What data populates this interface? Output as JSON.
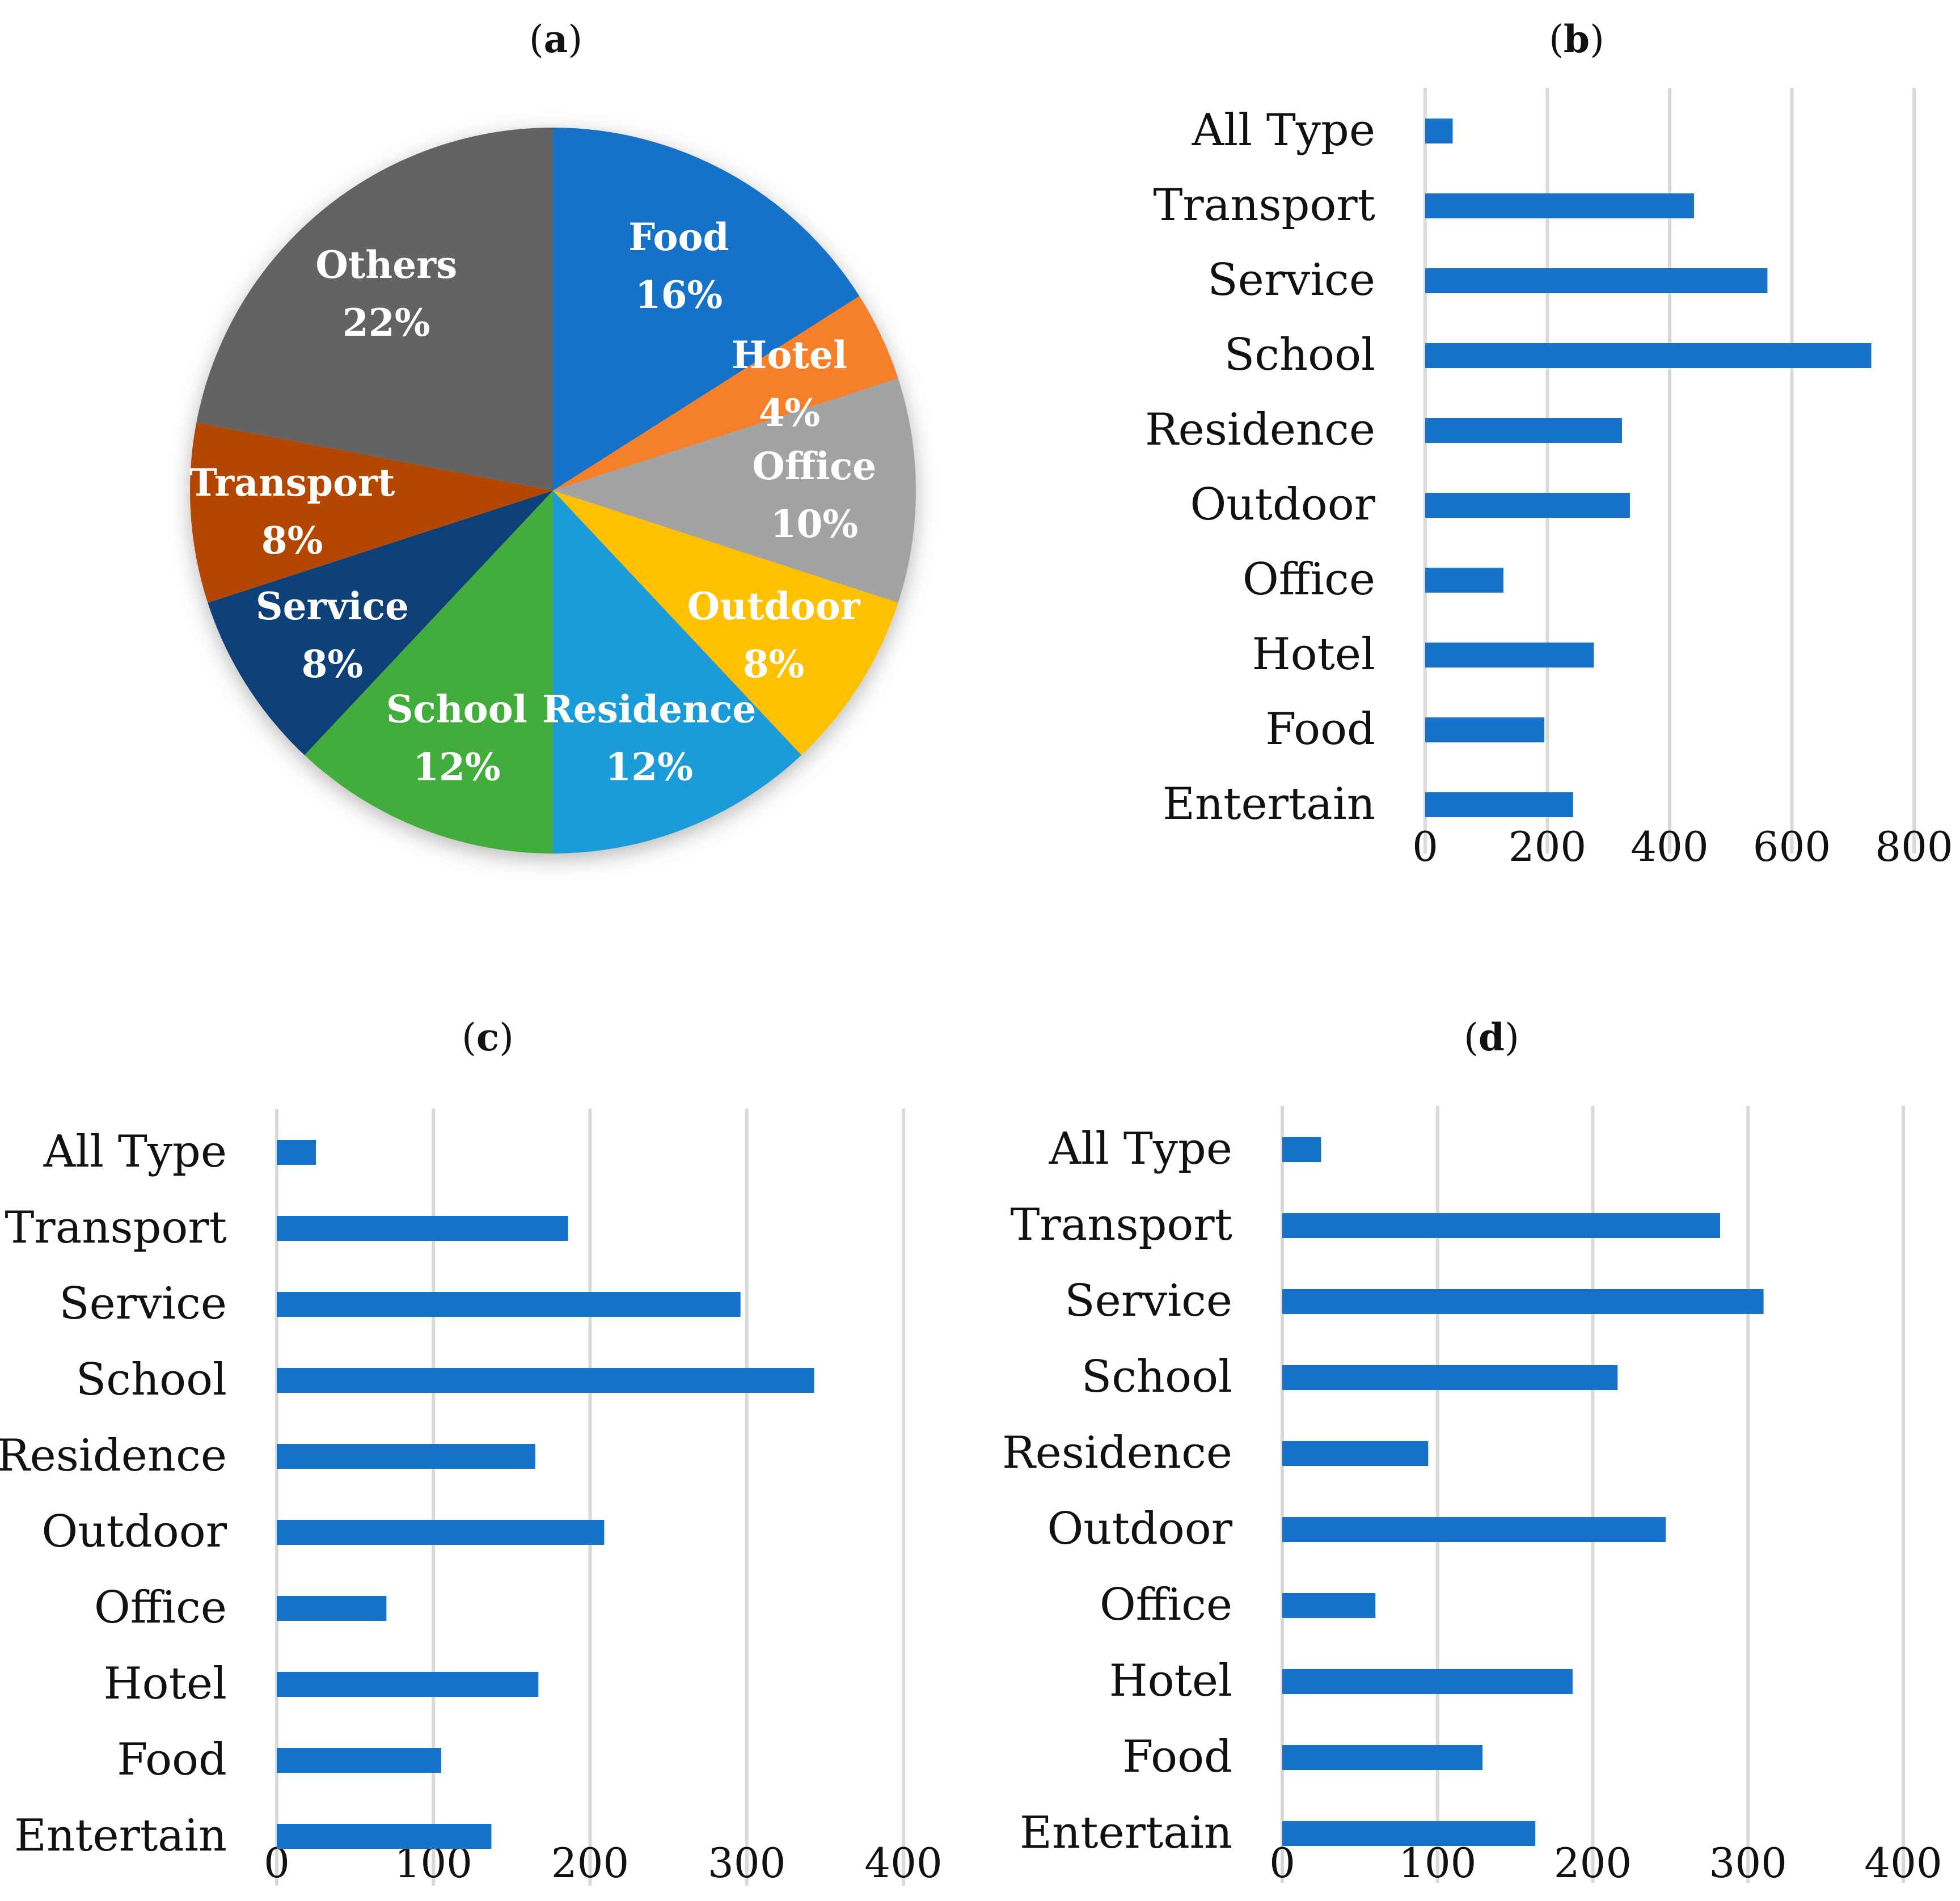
{
  "panels": {
    "a": {
      "title_letter": "a"
    },
    "b": {
      "title_letter": "b"
    },
    "c": {
      "title_letter": "c"
    },
    "d": {
      "title_letter": "d"
    }
  },
  "chart_data": [
    {
      "panel": "a",
      "type": "pie",
      "title": "(a)",
      "start_angle": "12 o'clock, clockwise",
      "slices": [
        {
          "label": "Food",
          "value": 16,
          "text": "16%",
          "color": "#1772C9"
        },
        {
          "label": "Hotel",
          "value": 4,
          "text": "4%",
          "color": "#F6802A"
        },
        {
          "label": "Office",
          "value": 10,
          "text": "10%",
          "color": "#A3A3A3"
        },
        {
          "label": "Outdoor",
          "value": 8,
          "text": "8%",
          "color": "#FFC000"
        },
        {
          "label": "Residence",
          "value": 12,
          "text": "12%",
          "color": "#1E9BD9"
        },
        {
          "label": "School",
          "value": 12,
          "text": "12%",
          "color": "#43AC3D"
        },
        {
          "label": "Service",
          "value": 8,
          "text": "8%",
          "color": "#0E4178"
        },
        {
          "label": "Transport",
          "value": 8,
          "text": "8%",
          "color": "#B44705"
        },
        {
          "label": "Others",
          "value": 22,
          "text": "22%",
          "color": "#646464"
        }
      ]
    },
    {
      "panel": "b",
      "type": "bar",
      "orientation": "horizontal",
      "title": "(b)",
      "categories": [
        "All Type",
        "Transport",
        "Service",
        "School",
        "Residence",
        "Outdoor",
        "Office",
        "Hotel",
        "Food",
        "Entertain"
      ],
      "values": [
        45,
        440,
        560,
        730,
        322,
        335,
        128,
        276,
        195,
        242
      ],
      "xlim": [
        0,
        800
      ],
      "ticks": [
        0,
        200,
        400,
        600,
        800
      ],
      "grid": true,
      "bar_color": "#1772C9"
    },
    {
      "panel": "c",
      "type": "bar",
      "orientation": "horizontal",
      "title": "(c)",
      "categories": [
        "All Type",
        "Transport",
        "Service",
        "School",
        "Residence",
        "Outdoor",
        "Office",
        "Hotel",
        "Food",
        "Entertain"
      ],
      "values": [
        25,
        186,
        296,
        343,
        165,
        209,
        70,
        167,
        105,
        137
      ],
      "xlim": [
        0,
        400
      ],
      "ticks": [
        0,
        100,
        200,
        300,
        400
      ],
      "grid": true,
      "bar_color": "#1772C9"
    },
    {
      "panel": "d",
      "type": "bar",
      "orientation": "horizontal",
      "title": "(d)",
      "categories": [
        "All Type",
        "Transport",
        "Service",
        "School",
        "Residence",
        "Outdoor",
        "Office",
        "Hotel",
        "Food",
        "Entertain"
      ],
      "values": [
        25,
        282,
        310,
        216,
        94,
        247,
        60,
        187,
        129,
        163
      ],
      "xlim": [
        0,
        400
      ],
      "ticks": [
        0,
        100,
        200,
        300,
        400
      ],
      "grid": true,
      "bar_color": "#1772C9"
    }
  ]
}
